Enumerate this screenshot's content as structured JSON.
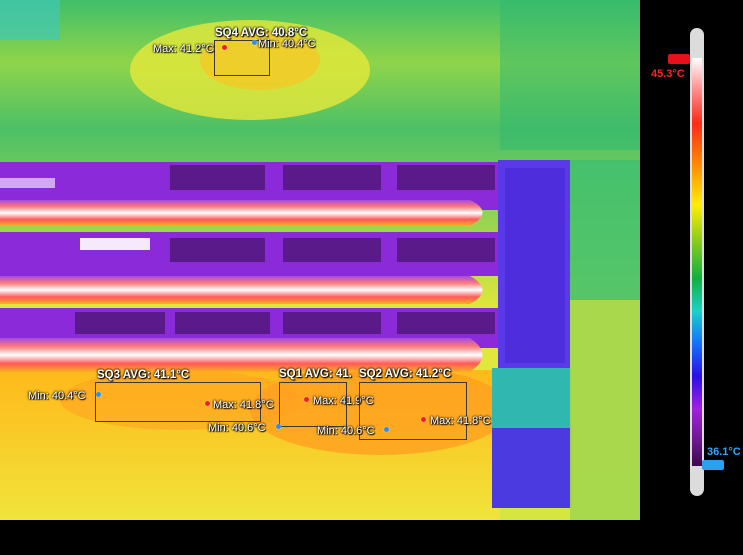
{
  "regions": {
    "sq1": {
      "title": "SQ1 AVG: 41.",
      "max": "Max: 41.9°C",
      "min": "Min: 40.6°C"
    },
    "sq2": {
      "title": "SQ2 AVG: 41.2°C",
      "max": "Max: 41.8°C",
      "min": "Min: 40.6°C"
    },
    "sq3": {
      "title": "SQ3 AVG: 41.1°C",
      "max": "Max: 41.8°C",
      "min": "Min: 40.4°C"
    },
    "sq4": {
      "title": "SQ4 AVG: 40.8°C",
      "max": "Max: 41.2°C",
      "min": "Min: 40.4°C"
    }
  },
  "scale": {
    "max": "45.3°C",
    "min": "36.1°C"
  },
  "colors": {
    "max_marker": "#e8202a",
    "min_marker": "#2f8fe8",
    "hot": "#ffffff",
    "cold": "#3a0a4a"
  }
}
